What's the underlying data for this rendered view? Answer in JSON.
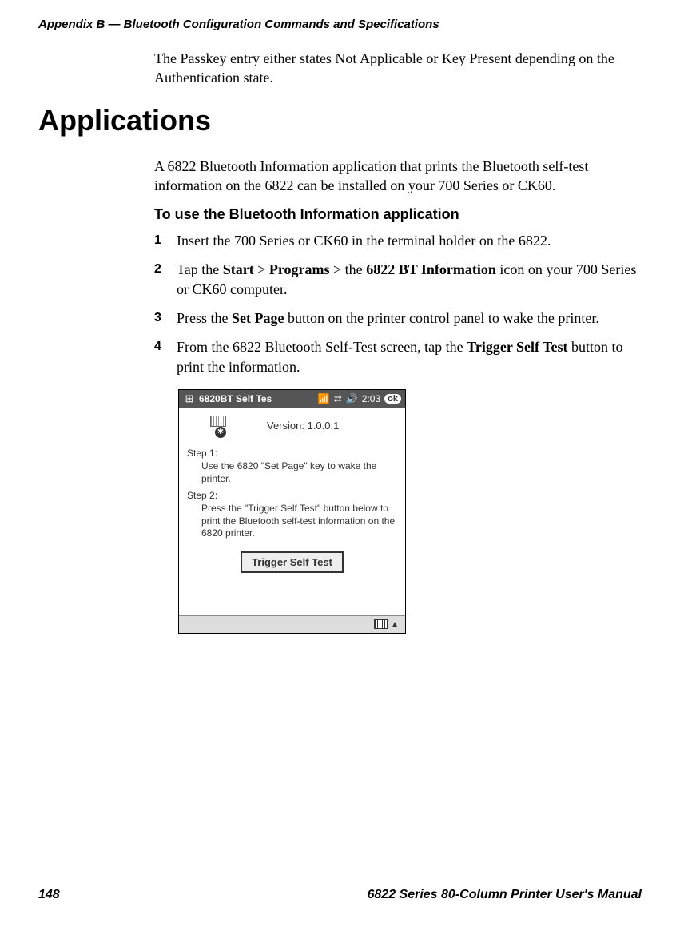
{
  "header": "Appendix B — Bluetooth Configuration Commands and Specifications",
  "intro": "The Passkey entry either states Not Applicable or Key Present depending on the Authentication state.",
  "h1": "Applications",
  "appsBody": "A 6822 Bluetooth Information application that prints the Bluetooth self-test information on the 6822 can be installed on your 700 Series or CK60.",
  "h3": "To use the Bluetooth Information application",
  "steps": {
    "s1": "Insert the 700 Series or CK60 in the terminal holder on the 6822.",
    "s2a": "Tap the ",
    "s2b": "Start",
    "s2c": " > ",
    "s2d": "Programs",
    "s2e": " > the ",
    "s2f": "6822 BT Information",
    "s2g": " icon on your 700 Series or CK60 computer.",
    "s3a": "Press the ",
    "s3b": "Set Page",
    "s3c": " button on the printer control panel to wake the printer.",
    "s4a": "From the 6822 Bluetooth Self-Test screen, tap the ",
    "s4b": "Trigger Self Test",
    "s4c": " button to print the information."
  },
  "pda": {
    "title": "6820BT Self Tes",
    "time": "2:03",
    "ok": "ok",
    "version": "Version: 1.0.0.1",
    "step1Label": "Step 1:",
    "step1Text": "Use the 6820 \"Set Page\" key to wake the printer.",
    "step2Label": "Step 2:",
    "step2Text": "Press the \"Trigger Self Test\" button below to print the Bluetooth self-test information on the 6820 printer.",
    "button": "Trigger Self Test"
  },
  "footer": {
    "pageNum": "148",
    "manual": "6822 Series 80-Column Printer User's Manual"
  }
}
